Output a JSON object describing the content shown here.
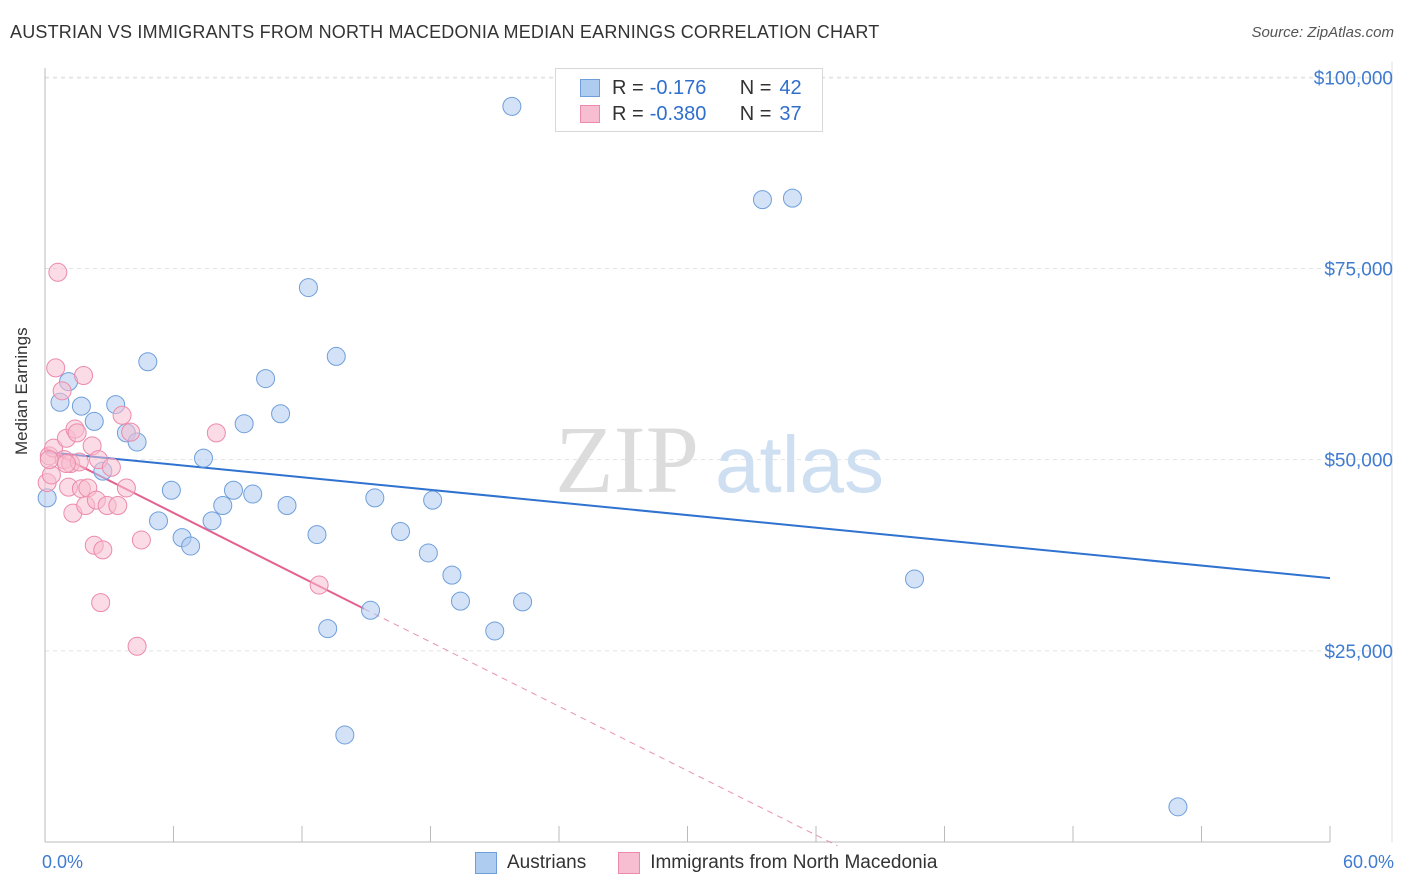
{
  "title": "AUSTRIAN VS IMMIGRANTS FROM NORTH MACEDONIA MEDIAN EARNINGS CORRELATION CHART",
  "source": "Source: ZipAtlas.com",
  "watermark": {
    "zip": "ZIP",
    "atlas": "atlas"
  },
  "legend_top": [
    {
      "r_label": "R =",
      "r_value": "-0.176",
      "n_label": "N =",
      "n_value": "42"
    },
    {
      "r_label": "R =",
      "r_value": "-0.380",
      "n_label": "N =",
      "n_value": "37"
    }
  ],
  "legend_bottom": [
    "Austrians",
    "Immigrants from North Macedonia"
  ],
  "x_tick_left": "0.0%",
  "x_tick_right": "60.0%",
  "colors": {
    "blue_fill": "#aecbf0",
    "blue_stroke": "#6f9fdb",
    "blue_line": "#2f72d0",
    "pink_fill": "#f7bdd0",
    "pink_stroke": "#ec8aab",
    "pink_line": "#e4618f",
    "tick_text": "#3f7bd0"
  },
  "chart_data": {
    "type": "scatter",
    "title": "AUSTRIAN VS IMMIGRANTS FROM NORTH MACEDONIA MEDIAN EARNINGS CORRELATION CHART",
    "xlabel": "",
    "ylabel": "Median Earnings",
    "xlim": [
      0,
      60
    ],
    "ylim": [
      0,
      102000
    ],
    "y_ticks": [
      {
        "value": 25000,
        "label": "$25,000"
      },
      {
        "value": 50000,
        "label": "$50,000"
      },
      {
        "value": 75000,
        "label": "$75,000"
      },
      {
        "value": 100000,
        "label": "$100,000"
      }
    ],
    "grid": true,
    "series": [
      {
        "name": "Austrians",
        "color": "blue",
        "points": [
          [
            0.1,
            45000
          ],
          [
            0.7,
            57500
          ],
          [
            1.1,
            60200
          ],
          [
            1.7,
            57000
          ],
          [
            2.3,
            55000
          ],
          [
            2.7,
            48500
          ],
          [
            3.3,
            57200
          ],
          [
            3.8,
            53500
          ],
          [
            4.3,
            52300
          ],
          [
            4.8,
            62800
          ],
          [
            5.3,
            42000
          ],
          [
            5.9,
            46000
          ],
          [
            6.4,
            39800
          ],
          [
            6.8,
            38700
          ],
          [
            7.4,
            50200
          ],
          [
            7.8,
            42000
          ],
          [
            8.3,
            44000
          ],
          [
            8.8,
            46000
          ],
          [
            9.3,
            54700
          ],
          [
            9.7,
            45500
          ],
          [
            10.3,
            60600
          ],
          [
            11.0,
            56000
          ],
          [
            11.3,
            44000
          ],
          [
            12.3,
            72500
          ],
          [
            12.7,
            40200
          ],
          [
            13.2,
            27900
          ],
          [
            13.6,
            63500
          ],
          [
            14.0,
            14000
          ],
          [
            15.2,
            30300
          ],
          [
            15.4,
            45000
          ],
          [
            16.6,
            40600
          ],
          [
            17.9,
            37800
          ],
          [
            18.1,
            44700
          ],
          [
            19.0,
            34900
          ],
          [
            19.4,
            31500
          ],
          [
            21.0,
            27600
          ],
          [
            21.8,
            96200
          ],
          [
            22.3,
            31400
          ],
          [
            33.5,
            84000
          ],
          [
            34.9,
            84200
          ],
          [
            40.6,
            34400
          ],
          [
            52.9,
            4600
          ]
        ]
      },
      {
        "name": "Immigrants from North Macedonia",
        "color": "pink",
        "points": [
          [
            0.1,
            47000
          ],
          [
            0.2,
            50500
          ],
          [
            0.3,
            48000
          ],
          [
            0.4,
            51500
          ],
          [
            0.5,
            62000
          ],
          [
            0.6,
            74500
          ],
          [
            0.8,
            59000
          ],
          [
            0.9,
            50000
          ],
          [
            1.0,
            52800
          ],
          [
            1.1,
            46400
          ],
          [
            1.2,
            49500
          ],
          [
            1.3,
            43000
          ],
          [
            1.4,
            54000
          ],
          [
            1.5,
            53500
          ],
          [
            1.6,
            49700
          ],
          [
            1.7,
            46200
          ],
          [
            1.8,
            61000
          ],
          [
            1.9,
            44000
          ],
          [
            2.0,
            46300
          ],
          [
            2.2,
            51800
          ],
          [
            2.3,
            38800
          ],
          [
            2.4,
            44700
          ],
          [
            2.5,
            50000
          ],
          [
            2.6,
            31300
          ],
          [
            2.7,
            38200
          ],
          [
            2.9,
            44000
          ],
          [
            3.1,
            49000
          ],
          [
            3.4,
            44000
          ],
          [
            3.6,
            55800
          ],
          [
            3.8,
            46300
          ],
          [
            4.0,
            53600
          ],
          [
            4.3,
            25600
          ],
          [
            4.5,
            39500
          ],
          [
            8.0,
            53500
          ],
          [
            12.8,
            33600
          ],
          [
            0.2,
            50000
          ],
          [
            1.0,
            49500
          ]
        ]
      }
    ],
    "trendlines": [
      {
        "series": "Austrians",
        "x": [
          0,
          60
        ],
        "y": [
          51000,
          34500
        ],
        "style": "solid"
      },
      {
        "series": "Immigrants from North Macedonia",
        "x": [
          0,
          14.9
        ],
        "y": [
          51500,
          30500
        ],
        "style": "solid"
      },
      {
        "series": "Immigrants from North Macedonia",
        "x": [
          14.9,
          37
        ],
        "y": [
          30500,
          -500
        ],
        "style": "dashed"
      }
    ]
  }
}
